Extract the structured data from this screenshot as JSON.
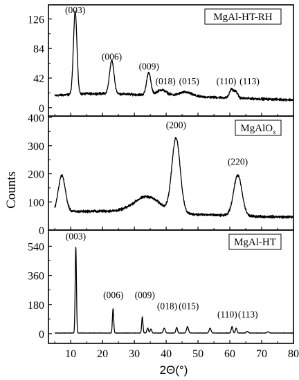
{
  "figure": {
    "ylabel": "Counts",
    "xlabel": "2Θ(°)"
  },
  "chart_data": [
    {
      "type": "line",
      "legend": "MgAl-HT-RH",
      "xlim": [
        3,
        80
      ],
      "ylim": [
        -12,
        146
      ],
      "yticks": [
        "0",
        "42",
        "84",
        "126"
      ],
      "xticks": [],
      "background": 10,
      "noise": 2.6,
      "broad": [
        {
          "c": 15,
          "a": 8,
          "w": 15
        },
        {
          "c": 45,
          "a": 5,
          "w": 20
        }
      ],
      "peaks": [
        {
          "x": 11.4,
          "height": 118,
          "width": 0.55
        },
        {
          "x": 22.9,
          "height": 47,
          "width": 0.7
        },
        {
          "x": 34.5,
          "height": 32,
          "width": 0.65
        },
        {
          "x": 38.6,
          "height": 8,
          "width": 1.6
        },
        {
          "x": 46.0,
          "height": 6,
          "width": 2.0
        },
        {
          "x": 60.5,
          "height": 12,
          "width": 0.6
        },
        {
          "x": 61.9,
          "height": 9,
          "width": 0.6
        }
      ],
      "peak_labels": [
        {
          "text": "(003)",
          "x": 11.4,
          "y": 134
        },
        {
          "text": "(006)",
          "x": 22.9,
          "y": 68
        },
        {
          "text": "(009)",
          "x": 34.6,
          "y": 54
        },
        {
          "text": "(018)",
          "x": 39.8,
          "y": 33
        },
        {
          "text": "(015)",
          "x": 47.2,
          "y": 33
        },
        {
          "text": "(110)",
          "x": 58.9,
          "y": 33
        },
        {
          "text": "(113)",
          "x": 66.2,
          "y": 33
        }
      ]
    },
    {
      "type": "line",
      "legend_main": "MgAlO",
      "legend_sub": "x",
      "xlim": [
        3,
        80
      ],
      "ylim": [
        0,
        405
      ],
      "yticks": [
        "100",
        "200",
        "300",
        "400"
      ],
      "yticks_minor": [
        "0"
      ],
      "xticks": [],
      "background": 45,
      "noise": 7,
      "broad": [
        {
          "c": 20,
          "a": 22,
          "w": 25
        },
        {
          "c": 34,
          "a": 55,
          "w": 4
        }
      ],
      "peaks": [
        {
          "x": 7.2,
          "height": 130,
          "width": 1.1
        },
        {
          "x": 43.1,
          "height": 265,
          "width": 1.3
        },
        {
          "x": 62.5,
          "height": 145,
          "width": 1.3
        }
      ],
      "peak_labels": [
        {
          "text": "(200)",
          "x": 43.1,
          "y": 362
        },
        {
          "text": "(220)",
          "x": 62.5,
          "y": 232
        }
      ]
    },
    {
      "type": "line",
      "legend": "MgAl-HT",
      "xlim": [
        3,
        80
      ],
      "ylim": [
        -60,
        640
      ],
      "yticks": [
        "0",
        "180",
        "360",
        "540"
      ],
      "xticks": [
        "10",
        "20",
        "30",
        "40",
        "50",
        "60",
        "70",
        "80"
      ],
      "background": 4,
      "noise": 1.5,
      "broad": [],
      "peaks": [
        {
          "x": 11.6,
          "height": 530,
          "width": 0.2
        },
        {
          "x": 23.3,
          "height": 150,
          "width": 0.2
        },
        {
          "x": 32.5,
          "height": 100,
          "width": 0.2
        },
        {
          "x": 34.2,
          "height": 30,
          "width": 0.25
        },
        {
          "x": 35.2,
          "height": 25,
          "width": 0.25
        },
        {
          "x": 39.4,
          "height": 30,
          "width": 0.3
        },
        {
          "x": 43.3,
          "height": 35,
          "width": 0.25
        },
        {
          "x": 46.7,
          "height": 40,
          "width": 0.3
        },
        {
          "x": 53.8,
          "height": 30,
          "width": 0.3
        },
        {
          "x": 60.7,
          "height": 40,
          "width": 0.25
        },
        {
          "x": 62.0,
          "height": 30,
          "width": 0.25
        },
        {
          "x": 65.5,
          "height": 10,
          "width": 0.3
        },
        {
          "x": 72.0,
          "height": 8,
          "width": 0.3
        }
      ],
      "peak_labels": [
        {
          "text": "(003)",
          "x": 11.6,
          "y": 582
        },
        {
          "text": "(006)",
          "x": 23.4,
          "y": 220
        },
        {
          "text": "(009)",
          "x": 33.3,
          "y": 220
        },
        {
          "text": "(018)",
          "x": 40.3,
          "y": 152
        },
        {
          "text": "(015)",
          "x": 47.1,
          "y": 152
        },
        {
          "text": "(110)",
          "x": 59.2,
          "y": 99
        },
        {
          "text": "(113)",
          "x": 65.7,
          "y": 99
        }
      ]
    }
  ]
}
